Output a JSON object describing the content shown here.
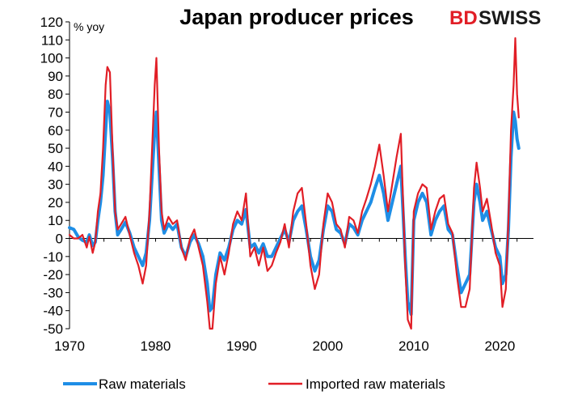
{
  "chart_data": {
    "type": "line",
    "title": "Japan producer prices",
    "unit_label": "% yoy",
    "ylim": [
      -50,
      120
    ],
    "yticks": [
      -50,
      -40,
      -30,
      -20,
      -10,
      0,
      10,
      20,
      30,
      40,
      50,
      60,
      70,
      80,
      90,
      100,
      110,
      120
    ],
    "xlim": [
      1970,
      2022.5
    ],
    "xticks": [
      1970,
      1980,
      1990,
      2000,
      2010,
      2020
    ],
    "grid": false,
    "legend_position": "bottom",
    "series": [
      {
        "name": "Raw materials",
        "color": "#1e8ee6",
        "points": [
          [
            1970,
            6
          ],
          [
            1970.5,
            5
          ],
          [
            1971,
            1
          ],
          [
            1971.5,
            -1
          ],
          [
            1972,
            -2
          ],
          [
            1972.3,
            2
          ],
          [
            1972.7,
            -4
          ],
          [
            1973,
            -2
          ],
          [
            1973.3,
            10
          ],
          [
            1973.6,
            20
          ],
          [
            1973.9,
            35
          ],
          [
            1974.2,
            60
          ],
          [
            1974.4,
            76
          ],
          [
            1974.7,
            70
          ],
          [
            1975,
            45
          ],
          [
            1975.3,
            15
          ],
          [
            1975.6,
            2
          ],
          [
            1976,
            5
          ],
          [
            1976.5,
            9
          ],
          [
            1977,
            3
          ],
          [
            1977.5,
            -5
          ],
          [
            1978,
            -10
          ],
          [
            1978.5,
            -15
          ],
          [
            1978.9,
            -8
          ],
          [
            1979.3,
            10
          ],
          [
            1979.6,
            35
          ],
          [
            1979.9,
            60
          ],
          [
            1980.1,
            70
          ],
          [
            1980.4,
            40
          ],
          [
            1980.7,
            10
          ],
          [
            1981,
            3
          ],
          [
            1981.5,
            8
          ],
          [
            1982,
            5
          ],
          [
            1982.5,
            8
          ],
          [
            1983,
            -5
          ],
          [
            1983.5,
            -10
          ],
          [
            1984,
            -2
          ],
          [
            1984.5,
            2
          ],
          [
            1985,
            -3
          ],
          [
            1985.5,
            -10
          ],
          [
            1986,
            -25
          ],
          [
            1986.3,
            -40
          ],
          [
            1986.6,
            -38
          ],
          [
            1987,
            -20
          ],
          [
            1987.5,
            -8
          ],
          [
            1988,
            -12
          ],
          [
            1988.5,
            -5
          ],
          [
            1989,
            5
          ],
          [
            1989.5,
            10
          ],
          [
            1990,
            8
          ],
          [
            1990.5,
            16
          ],
          [
            1991,
            -5
          ],
          [
            1991.5,
            -3
          ],
          [
            1992,
            -8
          ],
          [
            1992.5,
            -3
          ],
          [
            1993,
            -10
          ],
          [
            1993.5,
            -10
          ],
          [
            1994,
            -5
          ],
          [
            1994.5,
            0
          ],
          [
            1995,
            5
          ],
          [
            1995.5,
            -2
          ],
          [
            1996,
            10
          ],
          [
            1996.5,
            15
          ],
          [
            1997,
            18
          ],
          [
            1997.5,
            5
          ],
          [
            1998,
            -10
          ],
          [
            1998.5,
            -18
          ],
          [
            1999,
            -12
          ],
          [
            1999.5,
            5
          ],
          [
            2000,
            18
          ],
          [
            2000.5,
            15
          ],
          [
            2001,
            5
          ],
          [
            2001.5,
            3
          ],
          [
            2002,
            -3
          ],
          [
            2002.5,
            8
          ],
          [
            2003,
            6
          ],
          [
            2003.5,
            2
          ],
          [
            2004,
            10
          ],
          [
            2004.5,
            15
          ],
          [
            2005,
            20
          ],
          [
            2005.5,
            28
          ],
          [
            2006,
            35
          ],
          [
            2006.5,
            25
          ],
          [
            2007,
            10
          ],
          [
            2007.5,
            20
          ],
          [
            2008,
            30
          ],
          [
            2008.5,
            40
          ],
          [
            2009,
            -10
          ],
          [
            2009.3,
            -35
          ],
          [
            2009.7,
            -42
          ],
          [
            2010,
            10
          ],
          [
            2010.5,
            20
          ],
          [
            2011,
            25
          ],
          [
            2011.5,
            20
          ],
          [
            2012,
            2
          ],
          [
            2012.5,
            10
          ],
          [
            2013,
            15
          ],
          [
            2013.5,
            18
          ],
          [
            2014,
            5
          ],
          [
            2014.5,
            2
          ],
          [
            2015,
            -15
          ],
          [
            2015.5,
            -30
          ],
          [
            2016,
            -25
          ],
          [
            2016.5,
            -20
          ],
          [
            2017,
            20
          ],
          [
            2017.3,
            30
          ],
          [
            2017.7,
            20
          ],
          [
            2018,
            10
          ],
          [
            2018.5,
            15
          ],
          [
            2019,
            5
          ],
          [
            2019.5,
            -5
          ],
          [
            2020,
            -10
          ],
          [
            2020.3,
            -25
          ],
          [
            2020.7,
            -20
          ],
          [
            2021,
            5
          ],
          [
            2021.3,
            45
          ],
          [
            2021.6,
            70
          ],
          [
            2021.8,
            65
          ],
          [
            2022,
            55
          ],
          [
            2022.2,
            50
          ]
        ]
      },
      {
        "name": "Imported raw materials",
        "color": "#e11e26",
        "points": [
          [
            1970,
            2
          ],
          [
            1970.5,
            0
          ],
          [
            1971,
            0
          ],
          [
            1971.5,
            2
          ],
          [
            1972,
            -5
          ],
          [
            1972.3,
            1
          ],
          [
            1972.7,
            -8
          ],
          [
            1973,
            -2
          ],
          [
            1973.3,
            15
          ],
          [
            1973.6,
            25
          ],
          [
            1973.9,
            50
          ],
          [
            1974.2,
            85
          ],
          [
            1974.4,
            95
          ],
          [
            1974.7,
            92
          ],
          [
            1975,
            50
          ],
          [
            1975.3,
            15
          ],
          [
            1975.6,
            5
          ],
          [
            1976,
            8
          ],
          [
            1976.5,
            12
          ],
          [
            1977,
            2
          ],
          [
            1977.5,
            -8
          ],
          [
            1978,
            -15
          ],
          [
            1978.5,
            -25
          ],
          [
            1978.9,
            -15
          ],
          [
            1979.3,
            15
          ],
          [
            1979.6,
            50
          ],
          [
            1979.9,
            85
          ],
          [
            1980.1,
            100
          ],
          [
            1980.4,
            50
          ],
          [
            1980.7,
            15
          ],
          [
            1981,
            5
          ],
          [
            1981.5,
            12
          ],
          [
            1982,
            8
          ],
          [
            1982.5,
            10
          ],
          [
            1983,
            -5
          ],
          [
            1983.5,
            -12
          ],
          [
            1984,
            0
          ],
          [
            1984.5,
            5
          ],
          [
            1985,
            -5
          ],
          [
            1985.5,
            -15
          ],
          [
            1986,
            -35
          ],
          [
            1986.3,
            -55
          ],
          [
            1986.6,
            -50
          ],
          [
            1987,
            -25
          ],
          [
            1987.5,
            -10
          ],
          [
            1988,
            -20
          ],
          [
            1988.5,
            -8
          ],
          [
            1989,
            8
          ],
          [
            1989.5,
            15
          ],
          [
            1990,
            10
          ],
          [
            1990.5,
            25
          ],
          [
            1991,
            -10
          ],
          [
            1991.5,
            -5
          ],
          [
            1992,
            -15
          ],
          [
            1992.5,
            -5
          ],
          [
            1993,
            -18
          ],
          [
            1993.5,
            -15
          ],
          [
            1994,
            -8
          ],
          [
            1994.5,
            -2
          ],
          [
            1995,
            8
          ],
          [
            1995.5,
            -5
          ],
          [
            1996,
            15
          ],
          [
            1996.5,
            25
          ],
          [
            1997,
            28
          ],
          [
            1997.5,
            8
          ],
          [
            1998,
            -15
          ],
          [
            1998.5,
            -28
          ],
          [
            1999,
            -20
          ],
          [
            1999.5,
            8
          ],
          [
            2000,
            25
          ],
          [
            2000.5,
            20
          ],
          [
            2001,
            8
          ],
          [
            2001.5,
            5
          ],
          [
            2002,
            -5
          ],
          [
            2002.5,
            12
          ],
          [
            2003,
            10
          ],
          [
            2003.5,
            3
          ],
          [
            2004,
            15
          ],
          [
            2004.5,
            22
          ],
          [
            2005,
            30
          ],
          [
            2005.5,
            40
          ],
          [
            2006,
            52
          ],
          [
            2006.5,
            35
          ],
          [
            2007,
            15
          ],
          [
            2007.5,
            30
          ],
          [
            2008,
            45
          ],
          [
            2008.5,
            58
          ],
          [
            2009,
            -15
          ],
          [
            2009.3,
            -45
          ],
          [
            2009.7,
            -50
          ],
          [
            2010,
            15
          ],
          [
            2010.5,
            25
          ],
          [
            2011,
            30
          ],
          [
            2011.5,
            28
          ],
          [
            2012,
            5
          ],
          [
            2012.5,
            15
          ],
          [
            2013,
            22
          ],
          [
            2013.5,
            24
          ],
          [
            2014,
            8
          ],
          [
            2014.5,
            3
          ],
          [
            2015,
            -20
          ],
          [
            2015.5,
            -38
          ],
          [
            2016,
            -38
          ],
          [
            2016.5,
            -28
          ],
          [
            2017,
            28
          ],
          [
            2017.3,
            42
          ],
          [
            2017.7,
            28
          ],
          [
            2018,
            15
          ],
          [
            2018.5,
            22
          ],
          [
            2019,
            8
          ],
          [
            2019.5,
            -8
          ],
          [
            2020,
            -15
          ],
          [
            2020.3,
            -38
          ],
          [
            2020.7,
            -28
          ],
          [
            2021,
            10
          ],
          [
            2021.3,
            60
          ],
          [
            2021.6,
            85
          ],
          [
            2021.8,
            111
          ],
          [
            2022,
            80
          ],
          [
            2022.2,
            67
          ]
        ]
      }
    ]
  },
  "branding": {
    "logo_text_red": "BD",
    "logo_text_dark": "SWISS"
  }
}
